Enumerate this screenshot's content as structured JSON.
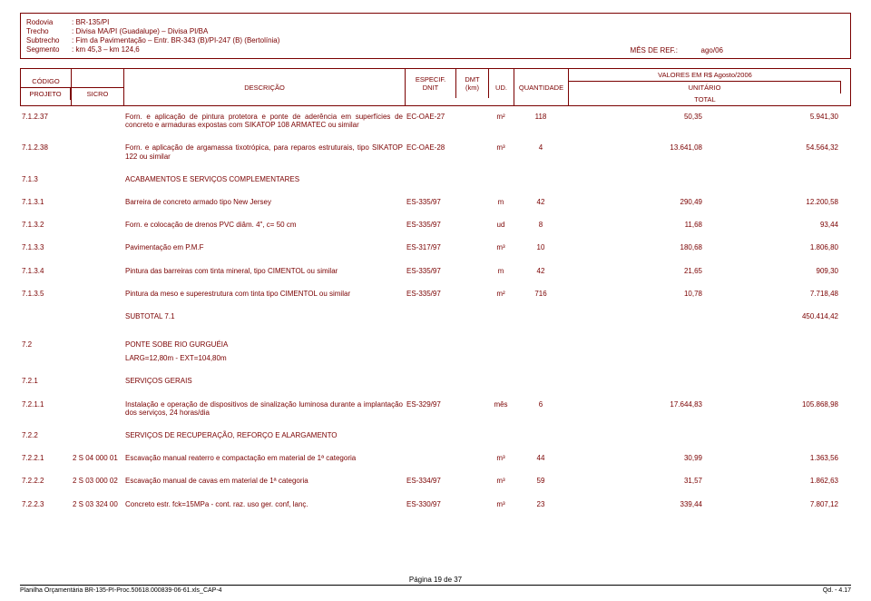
{
  "header": {
    "rodovia_lbl": "Rodovia",
    "rodovia": ": BR-135/PI",
    "trecho_lbl": "Trecho",
    "trecho": ": Divisa MA/PI (Guadalupe) – Divisa PI/BA",
    "subtrecho_lbl": "Subtrecho",
    "subtrecho": ": Fim da Pavimentação – Entr. BR-343 (B)/PI-247 (B) (Bertolínia)",
    "segmento_lbl": "Segmento",
    "segmento": ": km 45,3 – km 124,6",
    "mesref_lbl": "MÊS DE REF.:",
    "mesref": "ago/06"
  },
  "th": {
    "codigo": "CÓDIGO",
    "projeto": "PROJETO",
    "sicro": "SICRO",
    "descricao": "DESCRIÇÃO",
    "especif": "ESPECIF.",
    "dnit": "DNIT",
    "dmt": "DMT",
    "km": "(km)",
    "ud": "UD.",
    "qtd": "QUANTIDADE",
    "val": "VALORES EM R$ Agosto/2006",
    "unit": "UNITÁRIO",
    "total": "TOTAL"
  },
  "rows": [
    {
      "proj": "7.1.2.37",
      "sicro": "",
      "desc": "Forn. e aplicação de pintura protetora e ponte de aderência em superfícies de concreto e armaduras expostas com SIKATOP 108 ARMATEC ou similar",
      "spec": "EC-OAE-27",
      "ud": "m²",
      "qty": "118",
      "unit": "50,35",
      "tot": "5.941,30"
    },
    {
      "gap": true
    },
    {
      "proj": "7.1.2.38",
      "sicro": "",
      "desc": "Forn. e aplicação de argamassa tixotrópica, para reparos estruturais, tipo SIKATOP 122 ou similar",
      "spec": "EC-OAE-28",
      "ud": "m³",
      "qty": "4",
      "unit": "13.641,08",
      "tot": "54.564,32"
    },
    {
      "gap": true
    },
    {
      "proj": "7.1.3",
      "sicro": "",
      "desc": "ACABAMENTOS E SERVIÇOS COMPLEMENTARES",
      "section": true
    },
    {
      "gap": true
    },
    {
      "proj": "7.1.3.1",
      "sicro": "",
      "desc": "Barreira de concreto armado tipo New Jersey",
      "spec": "ES-335/97",
      "ud": "m",
      "qty": "42",
      "unit": "290,49",
      "tot": "12.200,58"
    },
    {
      "gap": true
    },
    {
      "proj": "7.1.3.2",
      "sicro": "",
      "desc": "Forn. e colocação de drenos PVC diâm. 4\", c= 50 cm",
      "spec": "ES-335/97",
      "ud": "ud",
      "qty": "8",
      "unit": "11,68",
      "tot": "93,44"
    },
    {
      "gap": true
    },
    {
      "proj": "7.1.3.3",
      "sicro": "",
      "desc": "Pavimentação em P.M.F",
      "spec": "ES-317/97",
      "ud": "m³",
      "qty": "10",
      "unit": "180,68",
      "tot": "1.806,80"
    },
    {
      "gap": true
    },
    {
      "proj": "7.1.3.4",
      "sicro": "",
      "desc": "Pintura das barreiras com tinta mineral, tipo CIMENTOL ou similar",
      "spec": "ES-335/97",
      "ud": "m",
      "qty": "42",
      "unit": "21,65",
      "tot": "909,30"
    },
    {
      "gap": true
    },
    {
      "proj": "7.1.3.5",
      "sicro": "",
      "desc": "Pintura da meso e superestrutura com tinta tipo CIMENTOL ou similar",
      "spec": "ES-335/97",
      "ud": "m²",
      "qty": "716",
      "unit": "10,78",
      "tot": "7.718,48"
    },
    {
      "gap": true
    },
    {
      "proj": "",
      "sicro": "",
      "desc": "SUBTOTAL 7.1",
      "tot": "450.414,42",
      "subtotal": true
    },
    {
      "gap": true
    },
    {
      "gap": true
    },
    {
      "proj": "7.2",
      "sicro": "",
      "desc": "PONTE SOBE  RIO GURGUÉIA",
      "section": true
    },
    {
      "proj": "",
      "sicro": "",
      "desc": "LARG=12,80m - EXT=104,80m"
    },
    {
      "gap": true
    },
    {
      "proj": "7.2.1",
      "sicro": "",
      "desc": "SERVIÇOS GERAIS",
      "section": true
    },
    {
      "gap": true
    },
    {
      "proj": "7.2.1.1",
      "sicro": "",
      "desc": "Instalação e operação de dispositivos de sinalização luminosa durante a implantação dos serviços, 24 horas/dia",
      "spec": "ES-329/97",
      "ud": "mês",
      "qty": "6",
      "unit": "17.644,83",
      "tot": "105.868,98"
    },
    {
      "gap": true
    },
    {
      "proj": "7.2.2",
      "sicro": "",
      "desc": "SERVIÇOS DE RECUPERAÇÃO, REFORÇO E ALARGAMENTO",
      "section": true
    },
    {
      "gap": true
    },
    {
      "proj": "7.2.2.1",
      "sicro": "2 S 04 000 01",
      "desc": "Escavação manual reaterro e compactação em material de 1ª categoria",
      "spec": "",
      "ud": "m³",
      "qty": "44",
      "unit": "30,99",
      "tot": "1.363,56"
    },
    {
      "gap": true
    },
    {
      "proj": "7.2.2.2",
      "sicro": "2 S 03 000 02",
      "desc": "Escavação manual de cavas em material de 1ª categoria",
      "spec": "ES-334/97",
      "ud": "m³",
      "qty": "59",
      "unit": "31,57",
      "tot": "1.862,63"
    },
    {
      "gap": true
    },
    {
      "proj": "7.2.2.3",
      "sicro": "2 S 03 324 00",
      "desc": "Concreto estr. fck=15MPa - cont. raz. uso ger. conf, lanç.",
      "spec": "ES-330/97",
      "ud": "m³",
      "qty": "23",
      "unit": "339,44",
      "tot": "7.807,12"
    }
  ],
  "footer": {
    "left": "Planilha Orçamentária BR-135-PI-Proc.50618.000839-06-61.xls_CAP-4",
    "mid": "Página 19 de 37",
    "right": "Qd. - 4.17"
  }
}
